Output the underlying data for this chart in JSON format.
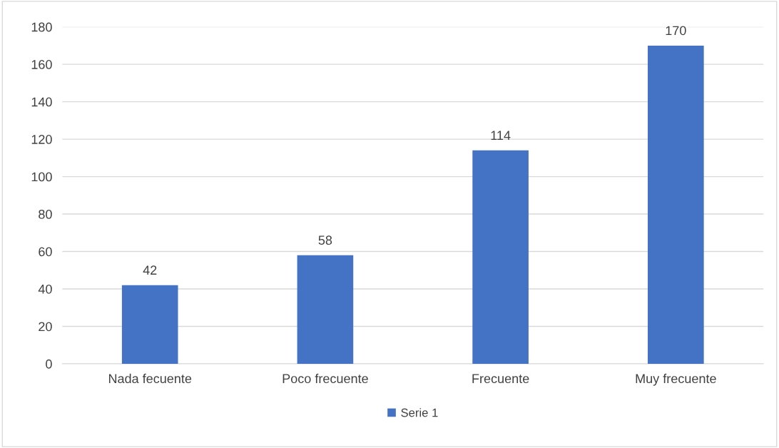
{
  "chart_data": {
    "type": "bar",
    "categories": [
      "Nada fecuente",
      "Poco frecuente",
      "Frecuente",
      "Muy frecuente"
    ],
    "series": [
      {
        "name": "Serie 1",
        "color": "#4472c4",
        "values": [
          42,
          58,
          114,
          170
        ]
      }
    ],
    "ylim": [
      0,
      180
    ],
    "yticks": [
      0,
      20,
      40,
      60,
      80,
      100,
      120,
      140,
      160,
      180
    ],
    "grid": "y",
    "legend": "bottom",
    "data_labels": true
  }
}
